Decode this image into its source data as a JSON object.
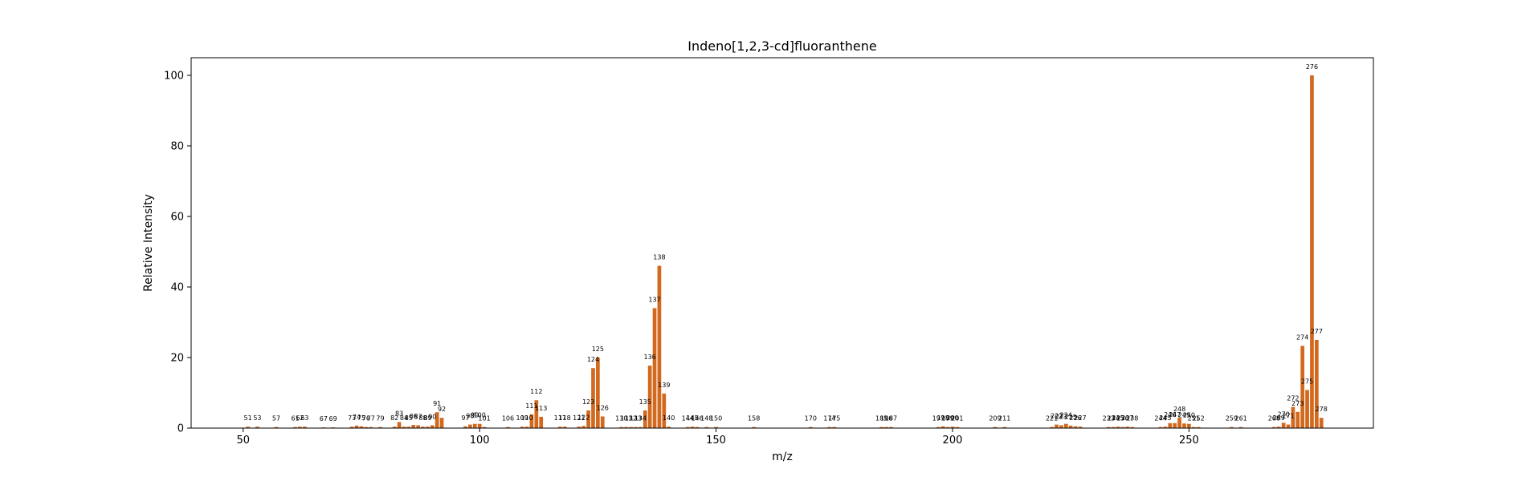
{
  "chart_data": {
    "type": "bar",
    "title": "Indeno[1,2,3-cd]fluoranthene",
    "xlabel": "m/z",
    "ylabel": "Relative Intensity",
    "xlim": [
      39,
      289
    ],
    "ylim": [
      0,
      105
    ],
    "xticks": [
      50,
      100,
      150,
      200,
      250
    ],
    "yticks": [
      0,
      20,
      40,
      60,
      80,
      100
    ],
    "grid": false,
    "bar_color": "#d2691e",
    "series": [
      {
        "values": [
          {
            "x": 51,
            "y": 0.4
          },
          {
            "x": 53,
            "y": 0.4
          },
          {
            "x": 57,
            "y": 0.3
          },
          {
            "x": 61,
            "y": 0.3
          },
          {
            "x": 62,
            "y": 0.4
          },
          {
            "x": 63,
            "y": 0.4
          },
          {
            "x": 67,
            "y": 0.2
          },
          {
            "x": 69,
            "y": 0.2
          },
          {
            "x": 73,
            "y": 0.4
          },
          {
            "x": 74,
            "y": 0.7
          },
          {
            "x": 75,
            "y": 0.5
          },
          {
            "x": 76,
            "y": 0.3
          },
          {
            "x": 77,
            "y": 0.3
          },
          {
            "x": 79,
            "y": 0.3
          },
          {
            "x": 82,
            "y": 0.4
          },
          {
            "x": 83,
            "y": 1.7
          },
          {
            "x": 84,
            "y": 0.4
          },
          {
            "x": 85,
            "y": 0.4
          },
          {
            "x": 86,
            "y": 0.9
          },
          {
            "x": 87,
            "y": 0.8
          },
          {
            "x": 88,
            "y": 0.4
          },
          {
            "x": 89,
            "y": 0.4
          },
          {
            "x": 90,
            "y": 0.8
          },
          {
            "x": 91,
            "y": 4.5
          },
          {
            "x": 92,
            "y": 2.9
          },
          {
            "x": 97,
            "y": 0.5
          },
          {
            "x": 98,
            "y": 1.0
          },
          {
            "x": 99,
            "y": 1.2
          },
          {
            "x": 100,
            "y": 1.2
          },
          {
            "x": 101,
            "y": 0.3
          },
          {
            "x": 106,
            "y": 0.3
          },
          {
            "x": 109,
            "y": 0.4
          },
          {
            "x": 110,
            "y": 0.4
          },
          {
            "x": 111,
            "y": 3.9
          },
          {
            "x": 112,
            "y": 7.9
          },
          {
            "x": 113,
            "y": 3.2
          },
          {
            "x": 117,
            "y": 0.4
          },
          {
            "x": 118,
            "y": 0.4
          },
          {
            "x": 121,
            "y": 0.4
          },
          {
            "x": 122,
            "y": 0.6
          },
          {
            "x": 123,
            "y": 5.0
          },
          {
            "x": 124,
            "y": 17.0
          },
          {
            "x": 125,
            "y": 20.0
          },
          {
            "x": 126,
            "y": 3.3
          },
          {
            "x": 130,
            "y": 0.3
          },
          {
            "x": 131,
            "y": 0.3
          },
          {
            "x": 132,
            "y": 0.3
          },
          {
            "x": 133,
            "y": 0.3
          },
          {
            "x": 134,
            "y": 0.3
          },
          {
            "x": 135,
            "y": 5.0
          },
          {
            "x": 136,
            "y": 17.7
          },
          {
            "x": 137,
            "y": 34.0
          },
          {
            "x": 138,
            "y": 46.0
          },
          {
            "x": 139,
            "y": 9.8
          },
          {
            "x": 140,
            "y": 0.4
          },
          {
            "x": 144,
            "y": 0.3
          },
          {
            "x": 145,
            "y": 0.4
          },
          {
            "x": 146,
            "y": 0.3
          },
          {
            "x": 148,
            "y": 0.3
          },
          {
            "x": 150,
            "y": 0.3
          },
          {
            "x": 158,
            "y": 0.3
          },
          {
            "x": 170,
            "y": 0.3
          },
          {
            "x": 174,
            "y": 0.3
          },
          {
            "x": 175,
            "y": 0.3
          },
          {
            "x": 185,
            "y": 0.3
          },
          {
            "x": 186,
            "y": 0.3
          },
          {
            "x": 187,
            "y": 0.3
          },
          {
            "x": 197,
            "y": 0.3
          },
          {
            "x": 198,
            "y": 0.5
          },
          {
            "x": 199,
            "y": 0.3
          },
          {
            "x": 200,
            "y": 0.4
          },
          {
            "x": 201,
            "y": 0.3
          },
          {
            "x": 209,
            "y": 0.3
          },
          {
            "x": 211,
            "y": 0.3
          },
          {
            "x": 221,
            "y": 0.3
          },
          {
            "x": 222,
            "y": 1.0
          },
          {
            "x": 223,
            "y": 0.8
          },
          {
            "x": 224,
            "y": 1.2
          },
          {
            "x": 225,
            "y": 0.7
          },
          {
            "x": 226,
            "y": 0.5
          },
          {
            "x": 227,
            "y": 0.4
          },
          {
            "x": 233,
            "y": 0.3
          },
          {
            "x": 234,
            "y": 0.3
          },
          {
            "x": 235,
            "y": 0.4
          },
          {
            "x": 236,
            "y": 0.3
          },
          {
            "x": 237,
            "y": 0.4
          },
          {
            "x": 238,
            "y": 0.3
          },
          {
            "x": 244,
            "y": 0.3
          },
          {
            "x": 245,
            "y": 0.4
          },
          {
            "x": 246,
            "y": 1.4
          },
          {
            "x": 247,
            "y": 1.4
          },
          {
            "x": 248,
            "y": 2.9
          },
          {
            "x": 249,
            "y": 1.3
          },
          {
            "x": 250,
            "y": 1.2
          },
          {
            "x": 251,
            "y": 0.3
          },
          {
            "x": 252,
            "y": 0.3
          },
          {
            "x": 259,
            "y": 0.3
          },
          {
            "x": 261,
            "y": 0.3
          },
          {
            "x": 268,
            "y": 0.3
          },
          {
            "x": 269,
            "y": 0.4
          },
          {
            "x": 270,
            "y": 1.5
          },
          {
            "x": 271,
            "y": 1.0
          },
          {
            "x": 272,
            "y": 6.0
          },
          {
            "x": 273,
            "y": 4.6
          },
          {
            "x": 274,
            "y": 23.3
          },
          {
            "x": 275,
            "y": 10.8
          },
          {
            "x": 276,
            "y": 100.0
          },
          {
            "x": 277,
            "y": 25.0
          },
          {
            "x": 278,
            "y": 2.9
          }
        ]
      }
    ]
  }
}
